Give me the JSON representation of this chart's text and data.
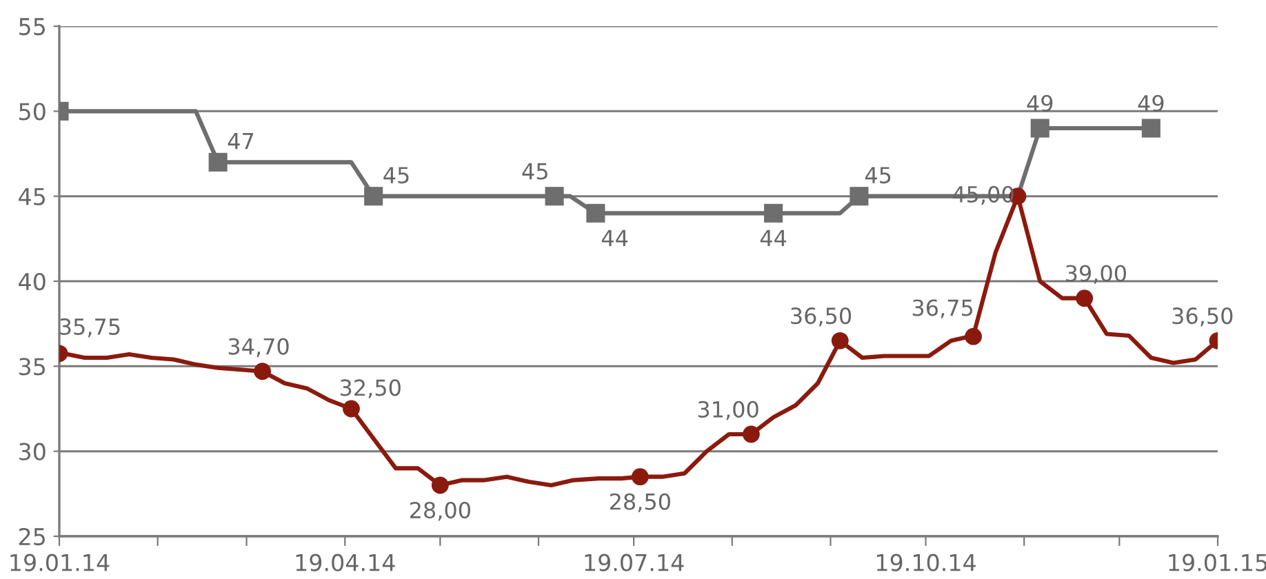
{
  "chart_data": {
    "type": "line",
    "grid": "y",
    "legend": false,
    "xlim": [
      "2014-01-19",
      "2015-01-19"
    ],
    "xticks": [
      {
        "value": "2014-01-19",
        "label": "19.01.14"
      },
      {
        "value": "2014-02-19",
        "label": null
      },
      {
        "value": "2014-03-19",
        "label": null
      },
      {
        "value": "2014-04-19",
        "label": "19.04.14"
      },
      {
        "value": "2014-05-19",
        "label": null
      },
      {
        "value": "2014-06-19",
        "label": null
      },
      {
        "value": "2014-07-19",
        "label": "19.07.14"
      },
      {
        "value": "2014-08-19",
        "label": null
      },
      {
        "value": "2014-09-19",
        "label": null
      },
      {
        "value": "2014-10-19",
        "label": "19.10.14"
      },
      {
        "value": "2014-11-19",
        "label": null
      },
      {
        "value": "2014-12-19",
        "label": null
      },
      {
        "value": "2015-01-19",
        "label": "19.01.15"
      }
    ],
    "ylim": [
      25,
      55
    ],
    "yticks": [
      25,
      30,
      35,
      40,
      45,
      50,
      55
    ],
    "series": [
      {
        "marker": "none",
        "color": "#8b1a0e",
        "x": [
          "2014-01-19",
          "2014-01-27",
          "2014-02-03",
          "2014-02-10",
          "2014-02-17",
          "2014-02-24",
          "2014-03-03",
          "2014-03-10",
          "2014-03-24",
          "2014-03-31",
          "2014-04-07",
          "2014-04-14",
          "2014-04-21",
          "2014-05-05",
          "2014-05-12",
          "2014-05-19",
          "2014-05-26",
          "2014-06-02",
          "2014-06-09",
          "2014-06-16",
          "2014-06-23",
          "2014-06-30",
          "2014-07-08",
          "2014-07-15",
          "2014-07-21",
          "2014-07-28",
          "2014-08-04",
          "2014-08-11",
          "2014-08-18",
          "2014-08-25",
          "2014-09-01",
          "2014-09-08",
          "2014-09-15",
          "2014-09-22",
          "2014-09-29",
          "2014-10-06",
          "2014-10-13",
          "2014-10-20",
          "2014-10-27",
          "2014-11-03",
          "2014-11-10",
          "2014-11-17",
          "2014-11-24",
          "2014-12-01",
          "2014-12-08",
          "2014-12-15",
          "2014-12-22",
          "2014-12-29",
          "2015-01-05",
          "2015-01-12",
          "2015-01-19"
        ],
        "values": [
          35.8,
          35.5,
          35.5,
          35.7,
          35.5,
          35.4,
          35.1,
          34.9,
          34.7,
          34.0,
          33.7,
          33.0,
          32.5,
          29.0,
          29.0,
          28.0,
          28.3,
          28.3,
          28.5,
          28.2,
          28.0,
          28.3,
          28.4,
          28.4,
          28.5,
          28.5,
          28.7,
          30.0,
          31.0,
          31.0,
          32.0,
          32.7,
          34.0,
          36.5,
          35.5,
          35.6,
          35.6,
          35.6,
          36.5,
          36.8,
          41.7,
          45.0,
          40.0,
          39.0,
          39.0,
          36.9,
          36.8,
          35.5,
          35.2,
          35.4,
          36.5
        ]
      },
      {
        "type": "scatter",
        "marker": "circle",
        "color": "#8b1a0e",
        "x": [
          "2014-01-19",
          "2014-03-24",
          "2014-04-21",
          "2014-05-19",
          "2014-07-21",
          "2014-08-25",
          "2014-09-22",
          "2014-11-03",
          "2014-11-17",
          "2014-12-08",
          "2015-01-19"
        ],
        "values": [
          35.75,
          34.7,
          32.5,
          28.0,
          28.5,
          31.0,
          36.5,
          36.75,
          45.0,
          39.0,
          36.5
        ],
        "value_labels": [
          "35,75",
          "34,70",
          "32,50",
          "28,00",
          "28,50",
          "31,00",
          "36,50",
          "36,75",
          "45,00",
          "39,00",
          "36,50"
        ]
      },
      {
        "marker": "none",
        "color": "#6e6e6e",
        "x": [
          "2014-01-19",
          "2014-03-03",
          "2014-03-10",
          "2014-04-21",
          "2014-04-28",
          "2014-06-24",
          "2014-06-29",
          "2014-07-07",
          "2014-09-01",
          "2014-09-22",
          "2014-09-28",
          "2014-11-17",
          "2014-11-24",
          "2014-12-29"
        ],
        "values": [
          50,
          50,
          47,
          47,
          45,
          45,
          45,
          44,
          44,
          44,
          45,
          45,
          49,
          49
        ]
      },
      {
        "type": "scatter",
        "marker": "square",
        "color": "#6e6e6e",
        "x": [
          "2014-01-19",
          "2014-03-10",
          "2014-04-28",
          "2014-06-24",
          "2014-07-07",
          "2014-09-01",
          "2014-09-28",
          "2014-11-24",
          "2014-12-29"
        ],
        "values": [
          50,
          47,
          45,
          45,
          44,
          44,
          45,
          49,
          49
        ],
        "value_labels": [
          null,
          "47",
          "45",
          "45",
          "44",
          "44",
          "45",
          "49",
          "49"
        ]
      }
    ]
  }
}
